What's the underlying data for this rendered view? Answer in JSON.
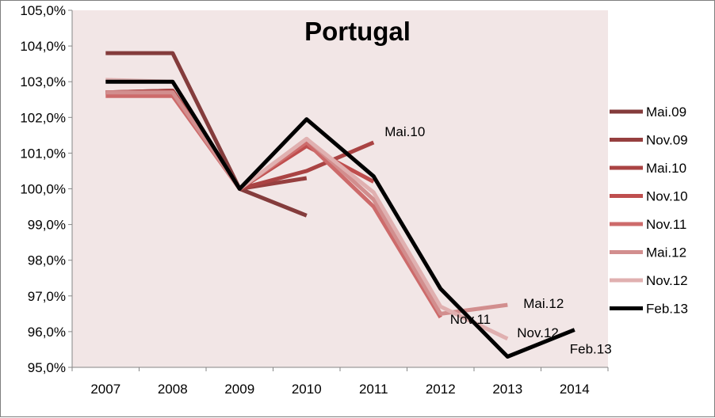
{
  "chart_data": {
    "type": "line",
    "title": "Portugal",
    "xlabel": "",
    "ylabel": "",
    "categories": [
      "2007",
      "2008",
      "2009",
      "2010",
      "2011",
      "2012",
      "2013",
      "2014"
    ],
    "y_ticks": [
      "95,0%",
      "96,0%",
      "97,0%",
      "98,0%",
      "99,0%",
      "100,0%",
      "101,0%",
      "102,0%",
      "103,0%",
      "104,0%",
      "105,0%"
    ],
    "ylim": [
      95,
      105
    ],
    "grid": false,
    "legend_position": "right",
    "plot_background": "#f2e6e6",
    "series": [
      {
        "name": "Mai.09",
        "color": "#843c3c",
        "width": 5,
        "points": [
          [
            2007,
            103.8
          ],
          [
            2008,
            103.8
          ],
          [
            2009,
            100.0
          ],
          [
            2010,
            99.25
          ]
        ]
      },
      {
        "name": "Nov.09",
        "color": "#963f3f",
        "width": 5,
        "points": [
          [
            2007,
            102.7
          ],
          [
            2008,
            102.75
          ],
          [
            2009,
            100.0
          ],
          [
            2010,
            100.3
          ]
        ]
      },
      {
        "name": "Mai.10",
        "color": "#aa4343",
        "width": 5,
        "points": [
          [
            2007,
            102.7
          ],
          [
            2008,
            102.75
          ],
          [
            2009,
            100.0
          ],
          [
            2010,
            100.5
          ],
          [
            2011,
            101.3
          ]
        ]
      },
      {
        "name": "Nov.10",
        "color": "#bf4e4e",
        "width": 5,
        "points": [
          [
            2007,
            102.7
          ],
          [
            2008,
            102.7
          ],
          [
            2009,
            100.0
          ],
          [
            2010,
            101.2
          ],
          [
            2011,
            100.2
          ]
        ]
      },
      {
        "name": "Nov.11",
        "color": "#cd6b6b",
        "width": 5,
        "points": [
          [
            2007,
            102.6
          ],
          [
            2008,
            102.6
          ],
          [
            2009,
            100.0
          ],
          [
            2010,
            101.3
          ],
          [
            2011,
            99.5
          ],
          [
            2012,
            96.4
          ]
        ]
      },
      {
        "name": "Mai.12",
        "color": "#d28e8e",
        "width": 5,
        "points": [
          [
            2007,
            102.7
          ],
          [
            2008,
            102.7
          ],
          [
            2009,
            100.0
          ],
          [
            2010,
            101.4
          ],
          [
            2011,
            99.7
          ],
          [
            2012,
            96.5
          ],
          [
            2013,
            96.75
          ]
        ]
      },
      {
        "name": "Nov.12",
        "color": "#e0b0b0",
        "width": 5,
        "points": [
          [
            2007,
            103.05
          ],
          [
            2008,
            103.0
          ],
          [
            2009,
            100.0
          ],
          [
            2010,
            101.4
          ],
          [
            2011,
            99.9
          ],
          [
            2012,
            96.7
          ],
          [
            2013,
            95.8
          ]
        ]
      },
      {
        "name": "Feb.13",
        "color": "#000000",
        "width": 5,
        "points": [
          [
            2007,
            103.0
          ],
          [
            2008,
            103.0
          ],
          [
            2009,
            100.0
          ],
          [
            2010,
            101.95
          ],
          [
            2011,
            100.35
          ],
          [
            2012,
            97.2
          ],
          [
            2013,
            95.3
          ],
          [
            2014,
            96.05
          ]
        ]
      }
    ],
    "annotations": [
      {
        "text": "Mai.10",
        "series": "Mai.10"
      },
      {
        "text": "Nov.11",
        "series": "Nov.11"
      },
      {
        "text": "Mai.12",
        "series": "Mai.12"
      },
      {
        "text": "Nov.12",
        "series": "Nov.12"
      },
      {
        "text": "Feb.13",
        "series": "Feb.13"
      }
    ]
  }
}
